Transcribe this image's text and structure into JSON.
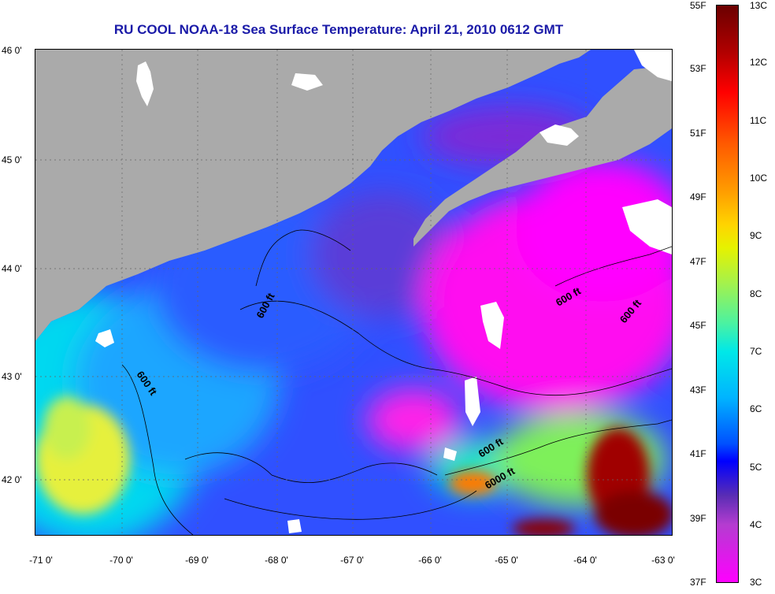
{
  "title": "RU COOL  NOAA-18  Sea Surface Temperature:  April 21, 2010 0612 GMT",
  "lat_labels": [
    "46 0'",
    "45 0'",
    "44 0'",
    "43 0'",
    "42 0'"
  ],
  "lon_labels": [
    "-71 0'",
    "-70 0'",
    "-69 0'",
    "-68 0'",
    "-67 0'",
    "-66 0'",
    "-65 0'",
    "-64 0'",
    "-63 0'"
  ],
  "contour_labels": [
    "600 ft",
    "600 ft",
    "600 ft",
    "600 ft",
    "600 ft",
    "6000 ft"
  ],
  "colorbar": {
    "fahrenheit": [
      "55F",
      "53F",
      "51F",
      "49F",
      "47F",
      "45F",
      "43F",
      "41F",
      "39F",
      "37F"
    ],
    "celsius": [
      "13C",
      "12C",
      "11C",
      "10C",
      "9C",
      "8C",
      "7C",
      "6C",
      "5C",
      "4C",
      "3C"
    ]
  },
  "colors": {
    "land": "#aaaaaa",
    "title": "#1a1aa8",
    "cold": "#ff00ff",
    "warm": "#6b0000"
  }
}
